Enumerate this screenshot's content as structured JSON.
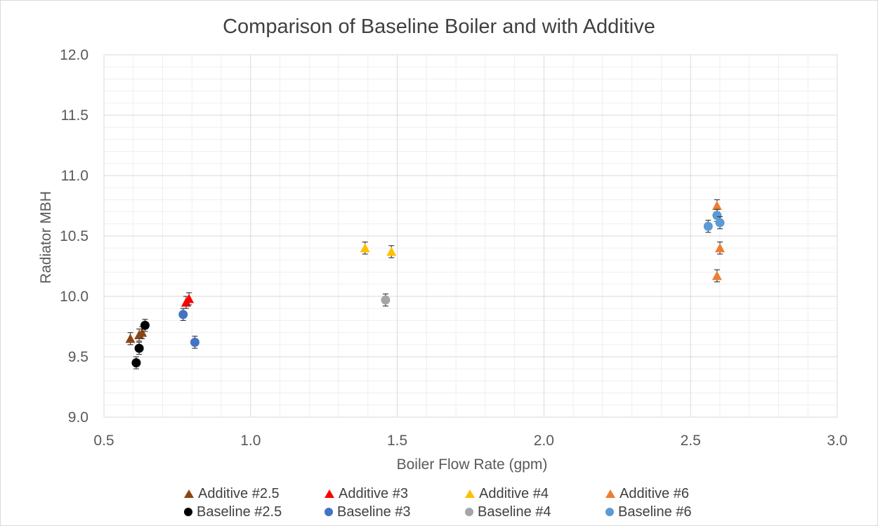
{
  "chart_data": {
    "type": "scatter",
    "title": "Comparison of Baseline Boiler and with Additive",
    "xlabel": "Boiler Flow Rate (gpm)",
    "ylabel": "Radiator MBH",
    "xlim": [
      0.5,
      3.0
    ],
    "ylim": [
      9.0,
      12.0
    ],
    "xticks": [
      "0.5",
      "1.0",
      "1.5",
      "2.0",
      "2.5",
      "3.0"
    ],
    "yticks": [
      "9.0",
      "9.5",
      "10.0",
      "10.5",
      "11.0",
      "11.5",
      "12.0"
    ],
    "grid": "major and minor",
    "legend_position": "bottom",
    "error_bar": 0.05,
    "series": [
      {
        "name": "Additive #2.5",
        "marker": "triangle",
        "color": "#8B4513",
        "points": [
          [
            0.59,
            9.65
          ],
          [
            0.62,
            9.68
          ],
          [
            0.63,
            9.7
          ]
        ]
      },
      {
        "name": "Additive #3",
        "marker": "triangle",
        "color": "#FF0000",
        "points": [
          [
            0.78,
            9.95
          ],
          [
            0.79,
            9.98
          ]
        ]
      },
      {
        "name": "Additive #4",
        "marker": "triangle",
        "color": "#FFC000",
        "points": [
          [
            1.39,
            10.4
          ],
          [
            1.48,
            10.37
          ]
        ]
      },
      {
        "name": "Additive #6",
        "marker": "triangle",
        "color": "#ED7D31",
        "points": [
          [
            2.59,
            10.75
          ],
          [
            2.6,
            10.4
          ],
          [
            2.59,
            10.17
          ]
        ]
      },
      {
        "name": "Baseline #2.5",
        "marker": "circle",
        "color": "#000000",
        "points": [
          [
            0.61,
            9.45
          ],
          [
            0.62,
            9.57
          ],
          [
            0.64,
            9.76
          ]
        ]
      },
      {
        "name": "Baseline #3",
        "marker": "circle",
        "color": "#4472C4",
        "points": [
          [
            0.77,
            9.85
          ],
          [
            0.81,
            9.62
          ]
        ]
      },
      {
        "name": "Baseline #4",
        "marker": "circle",
        "color": "#A5A5A5",
        "points": [
          [
            1.46,
            9.97
          ]
        ]
      },
      {
        "name": "Baseline #6",
        "marker": "circle",
        "color": "#5B9BD5",
        "points": [
          [
            2.56,
            10.58
          ],
          [
            2.59,
            10.67
          ],
          [
            2.6,
            10.61
          ]
        ]
      }
    ]
  },
  "colors": {
    "grid_major": "#d9d9d9",
    "grid_minor": "#efefef",
    "tick_text": "#595959",
    "error_bar": "#404040"
  }
}
